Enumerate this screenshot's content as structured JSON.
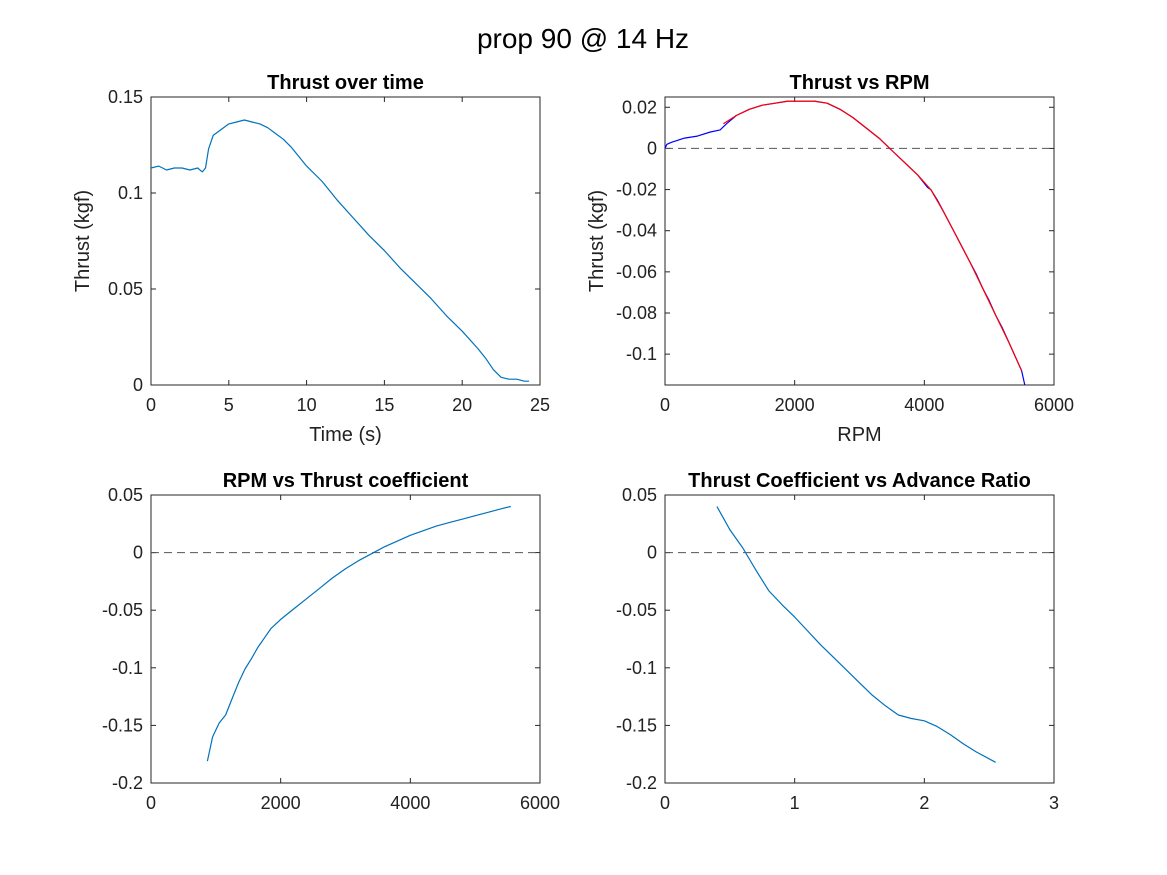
{
  "figure": {
    "title": "prop 90 @ 14 Hz"
  },
  "chart_data": [
    {
      "type": "line",
      "title": "Thrust over time",
      "xlabel": "Time (s)",
      "ylabel": "Thrust (kgf)",
      "xlim": [
        0,
        25
      ],
      "ylim": [
        0,
        0.15
      ],
      "xticks": [
        0,
        5,
        10,
        15,
        20,
        25
      ],
      "yticks": [
        0,
        0.05,
        0.1,
        0.15
      ],
      "xtick_labels": [
        "0",
        "5",
        "10",
        "15",
        "20",
        "25"
      ],
      "ytick_labels": [
        "0",
        "0.05",
        "0.1",
        "0.15"
      ],
      "grid": false,
      "series": [
        {
          "color": "#0072BD",
          "x": [
            0,
            0.5,
            1,
            1.5,
            2,
            2.5,
            3,
            3.3,
            3.5,
            3.7,
            4,
            4.5,
            5,
            5.5,
            6,
            6.5,
            7,
            7.5,
            8,
            8.5,
            9,
            9.5,
            10,
            11,
            12,
            13,
            14,
            15,
            16,
            17,
            18,
            19,
            20,
            21,
            21.5,
            22,
            22.5,
            23,
            23.5,
            24,
            24.3
          ],
          "y": [
            0.113,
            0.114,
            0.112,
            0.113,
            0.113,
            0.112,
            0.113,
            0.111,
            0.113,
            0.123,
            0.13,
            0.133,
            0.136,
            0.137,
            0.138,
            0.137,
            0.136,
            0.134,
            0.131,
            0.128,
            0.124,
            0.119,
            0.114,
            0.106,
            0.096,
            0.087,
            0.078,
            0.07,
            0.061,
            0.053,
            0.045,
            0.036,
            0.028,
            0.019,
            0.014,
            0.008,
            0.004,
            0.003,
            0.003,
            0.002,
            0.002
          ]
        }
      ]
    },
    {
      "type": "line",
      "title": "Thrust vs RPM",
      "xlabel": "RPM",
      "ylabel": "Thrust (kgf)",
      "xlim": [
        0,
        6000
      ],
      "ylim": [
        -0.115,
        0.025
      ],
      "xticks": [
        0,
        2000,
        4000,
        6000
      ],
      "yticks": [
        -0.1,
        -0.08,
        -0.06,
        -0.04,
        -0.02,
        0,
        0.02
      ],
      "xtick_labels": [
        "0",
        "2000",
        "4000",
        "6000"
      ],
      "ytick_labels": [
        "-0.1",
        "-0.08",
        "-0.06",
        "-0.04",
        "-0.02",
        "0",
        "0.02"
      ],
      "zero_line": true,
      "grid": false,
      "series": [
        {
          "color": "#0000FF",
          "x": [
            0,
            30,
            100,
            300,
            500,
            700,
            850,
            950,
            1100,
            1300,
            1500,
            1700,
            1900,
            2100,
            2300,
            2500,
            2700,
            2900,
            3100,
            3300,
            3500,
            3700,
            3900,
            4050,
            4100,
            4200,
            4300,
            4400,
            4500,
            4600,
            4700,
            4800,
            4900,
            5000,
            5100,
            5200,
            5300,
            5400,
            5500,
            5550
          ],
          "y": [
            0.0,
            0.002,
            0.003,
            0.005,
            0.006,
            0.008,
            0.009,
            0.012,
            0.016,
            0.019,
            0.021,
            0.022,
            0.023,
            0.023,
            0.023,
            0.022,
            0.019,
            0.015,
            0.01,
            0.005,
            -0.001,
            -0.007,
            -0.013,
            -0.019,
            -0.02,
            -0.025,
            -0.031,
            -0.037,
            -0.043,
            -0.049,
            -0.055,
            -0.061,
            -0.068,
            -0.074,
            -0.081,
            -0.087,
            -0.094,
            -0.101,
            -0.108,
            -0.115
          ]
        },
        {
          "color": "#FF0000",
          "x": [
            900,
            1100,
            1300,
            1500,
            1700,
            1900,
            2100,
            2300,
            2500,
            2700,
            2900,
            3100,
            3300,
            3500,
            3700,
            3900,
            4100,
            4300,
            4500,
            4700,
            4900,
            5100,
            5300,
            5500
          ],
          "y": [
            0.012,
            0.016,
            0.019,
            0.021,
            0.022,
            0.023,
            0.023,
            0.023,
            0.022,
            0.019,
            0.015,
            0.01,
            0.005,
            -0.001,
            -0.007,
            -0.013,
            -0.02,
            -0.031,
            -0.043,
            -0.055,
            -0.068,
            -0.081,
            -0.094,
            -0.108
          ]
        }
      ]
    },
    {
      "type": "line",
      "title": "RPM vs Thrust coefficient",
      "xlabel": "",
      "ylabel": "",
      "xlim": [
        0,
        6000
      ],
      "ylim": [
        -0.2,
        0.05
      ],
      "xticks": [
        0,
        2000,
        4000,
        6000
      ],
      "yticks": [
        -0.2,
        -0.15,
        -0.1,
        -0.05,
        0,
        0.05
      ],
      "xtick_labels": [
        "0",
        "2000",
        "4000",
        "6000"
      ],
      "ytick_labels": [
        "-0.2",
        "-0.15",
        "-0.1",
        "-0.05",
        "0",
        "0.05"
      ],
      "zero_line": true,
      "grid": false,
      "series": [
        {
          "color": "#0072BD",
          "x": [
            870,
            950,
            1050,
            1150,
            1250,
            1350,
            1450,
            1550,
            1650,
            1750,
            1850,
            2000,
            2200,
            2400,
            2600,
            2800,
            3000,
            3200,
            3400,
            3600,
            3800,
            4000,
            4200,
            4400,
            4600,
            4800,
            5000,
            5200,
            5400,
            5550
          ],
          "y": [
            -0.181,
            -0.16,
            -0.148,
            -0.141,
            -0.127,
            -0.113,
            -0.101,
            -0.092,
            -0.082,
            -0.074,
            -0.066,
            -0.058,
            -0.049,
            -0.04,
            -0.031,
            -0.022,
            -0.014,
            -0.007,
            -0.001,
            0.005,
            0.01,
            0.015,
            0.019,
            0.023,
            0.026,
            0.029,
            0.032,
            0.035,
            0.038,
            0.04
          ]
        }
      ]
    },
    {
      "type": "line",
      "title": "Thrust Coefficient vs Advance Ratio",
      "xlabel": "",
      "ylabel": "",
      "xlim": [
        0,
        3
      ],
      "ylim": [
        -0.2,
        0.05
      ],
      "xticks": [
        0,
        1,
        2,
        3
      ],
      "yticks": [
        -0.2,
        -0.15,
        -0.1,
        -0.05,
        0,
        0.05
      ],
      "xtick_labels": [
        "0",
        "1",
        "2",
        "3"
      ],
      "ytick_labels": [
        "-0.2",
        "-0.15",
        "-0.1",
        "-0.05",
        "0",
        "0.05"
      ],
      "zero_line": true,
      "grid": false,
      "series": [
        {
          "color": "#0072BD",
          "x": [
            0.4,
            0.5,
            0.6,
            0.7,
            0.8,
            0.9,
            1.0,
            1.1,
            1.2,
            1.3,
            1.4,
            1.5,
            1.6,
            1.7,
            1.8,
            1.9,
            2.0,
            2.1,
            2.2,
            2.3,
            2.4,
            2.55
          ],
          "y": [
            0.04,
            0.02,
            0.004,
            -0.015,
            -0.033,
            -0.045,
            -0.056,
            -0.068,
            -0.08,
            -0.091,
            -0.102,
            -0.113,
            -0.124,
            -0.133,
            -0.141,
            -0.144,
            -0.146,
            -0.151,
            -0.158,
            -0.166,
            -0.173,
            -0.182
          ]
        }
      ]
    }
  ]
}
